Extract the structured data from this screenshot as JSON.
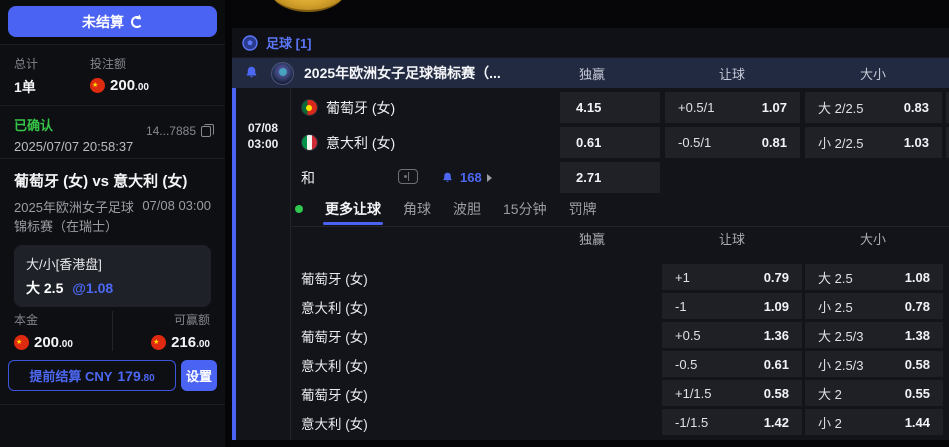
{
  "accent_color": "#4b63f2",
  "status_green": "#35c348",
  "sidebar": {
    "unsettled_button": "未结算",
    "stats": {
      "total_label": "总计",
      "total_value": "1单",
      "stake_label": "投注额",
      "stake_value": "200.00"
    },
    "status": {
      "confirmed_label": "已确认",
      "timestamp": "2025/07/07 20:58:37",
      "bet_id": "14...7885"
    },
    "match": {
      "title": "葡萄牙 (女) vs 意大利 (女)",
      "league": "2025年欧洲女子足球锦标赛（在瑞士）",
      "datetime": "07/08 03:00"
    },
    "selection": {
      "market": "大/小[香港盘]",
      "pick": "大 2.5",
      "odds": "@1.08"
    },
    "principal_label": "本金",
    "principal_value": "200.00",
    "winnable_label": "可赢额",
    "winnable_value": "216.00",
    "cashout_label": "提前结算 CNY",
    "cashout_value": "179.80",
    "settings_label": "设置"
  },
  "main": {
    "sport_tab": "足球 [1]",
    "league_header": {
      "title": "2025年欧洲女子足球锦标赛（...",
      "col_win": "独赢",
      "col_handicap": "让球",
      "col_ou": "大小"
    },
    "event": {
      "date": "07/08",
      "time": "03:00",
      "rows": [
        {
          "team": "葡萄牙 (女)",
          "win": "4.15",
          "hcp": "+0.5/1",
          "hcp_odds": "1.07",
          "ou": "大 2/2.5",
          "ou_odds": "0.83"
        },
        {
          "team": "意大利 (女)",
          "win": "0.61",
          "hcp": "-0.5/1",
          "hcp_odds": "0.81",
          "ou": "小 2/2.5",
          "ou_odds": "1.03"
        },
        {
          "team": "和",
          "win": "2.71",
          "bell_count": "168"
        }
      ]
    },
    "tabs": [
      {
        "label": "更多让球"
      },
      {
        "label": "角球"
      },
      {
        "label": "波胆"
      },
      {
        "label": "15分钟"
      },
      {
        "label": "罚牌"
      }
    ],
    "sub_table": {
      "col_win": "独赢",
      "col_handicap": "让球",
      "col_ou": "大小",
      "rows": [
        {
          "team": "葡萄牙 (女)",
          "hcp": "+1",
          "hcp_odds": "0.79",
          "ou": "大 2.5",
          "ou_odds": "1.08"
        },
        {
          "team": "意大利 (女)",
          "hcp": "-1",
          "hcp_odds": "1.09",
          "ou": "小 2.5",
          "ou_odds": "0.78"
        },
        {
          "team": "葡萄牙 (女)",
          "hcp": "+0.5",
          "hcp_odds": "1.36",
          "ou": "大 2.5/3",
          "ou_odds": "1.38"
        },
        {
          "team": "意大利 (女)",
          "hcp": "-0.5",
          "hcp_odds": "0.61",
          "ou": "小 2.5/3",
          "ou_odds": "0.58"
        },
        {
          "team": "葡萄牙 (女)",
          "hcp": "+1/1.5",
          "hcp_odds": "0.58",
          "ou": "大 2",
          "ou_odds": "0.55"
        },
        {
          "team": "意大利 (女)",
          "hcp": "-1/1.5",
          "hcp_odds": "1.42",
          "ou": "小 2",
          "ou_odds": "1.44"
        }
      ]
    }
  }
}
